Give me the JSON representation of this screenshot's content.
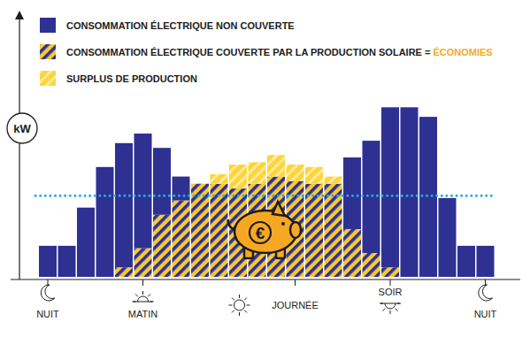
{
  "chart_data": {
    "type": "bar",
    "stacked": true,
    "grid": false,
    "legend": "top-left",
    "tick_labels": "x",
    "y_label": "kW",
    "annotation": "€",
    "categories": [
      "NUIT",
      null,
      null,
      null,
      null,
      "MATIN",
      null,
      null,
      null,
      null,
      null,
      null,
      null,
      "JOURNÉE",
      null,
      null,
      null,
      null,
      "SOIR",
      null,
      null,
      null,
      null,
      "NUIT"
    ],
    "ylim": [
      0,
      10
    ],
    "reference_line": 3.4,
    "series": [
      {
        "name": "CONSOMMATION ÉLECTRIQUE NON COUVERTE",
        "color": "#2e3192",
        "values": [
          1.3,
          1.3,
          2.9,
          4.6,
          5.2,
          4.8,
          2.8,
          1.0,
          0,
          0,
          0,
          0,
          0,
          0,
          0,
          0,
          3.0,
          4.7,
          6.7,
          7.1,
          6.7,
          3.3,
          1.3,
          1.3
        ]
      },
      {
        "name": "CONSOMMATION ÉLECTRIQUE COUVERTE PAR LA PRODUCTION SOLAIRE = ÉCONOMIES",
        "color": "#f9c932",
        "values": [
          0,
          0,
          0,
          0,
          0.4,
          1.2,
          2.6,
          3.2,
          3.9,
          3.9,
          3.7,
          3.9,
          4.2,
          4.0,
          3.9,
          3.9,
          2.0,
          1.0,
          0.4,
          0,
          0,
          0,
          0,
          0
        ]
      },
      {
        "name": "SURPLUS DE PRODUCTION",
        "color": "#fcd43c",
        "values": [
          0,
          0,
          0,
          0,
          0,
          0,
          0,
          0,
          0,
          0.4,
          1.0,
          0.9,
          0.9,
          0.7,
          0.7,
          0.3,
          0,
          0,
          0,
          0,
          0,
          0,
          0,
          0
        ]
      }
    ]
  }
}
